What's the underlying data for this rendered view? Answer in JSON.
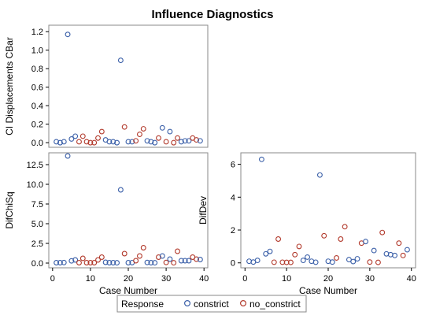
{
  "chart_data": {
    "type": "scatter",
    "title": "Influence Diagnostics",
    "colors": {
      "constrict": "#3a5fa8",
      "no_constrict": "#b23a2c"
    },
    "legend": {
      "title": "Response",
      "entries": [
        "constrict",
        "no_constrict"
      ],
      "placement": "bottom"
    },
    "cases": [
      1,
      2,
      3,
      4,
      5,
      6,
      7,
      8,
      9,
      10,
      11,
      12,
      13,
      14,
      15,
      16,
      17,
      18,
      19,
      20,
      21,
      22,
      23,
      24,
      25,
      26,
      27,
      28,
      29,
      30,
      31,
      32,
      33,
      34,
      35,
      36,
      37,
      38,
      39
    ],
    "response": [
      "constrict",
      "constrict",
      "constrict",
      "constrict",
      "constrict",
      "constrict",
      "no_constrict",
      "no_constrict",
      "no_constrict",
      "no_constrict",
      "no_constrict",
      "no_constrict",
      "no_constrict",
      "constrict",
      "constrict",
      "constrict",
      "constrict",
      "constrict",
      "no_constrict",
      "constrict",
      "constrict",
      "no_constrict",
      "no_constrict",
      "no_constrict",
      "constrict",
      "constrict",
      "constrict",
      "no_constrict",
      "constrict",
      "no_constrict",
      "constrict",
      "no_constrict",
      "no_constrict",
      "constrict",
      "constrict",
      "constrict",
      "no_constrict",
      "no_constrict",
      "constrict"
    ],
    "panels": [
      {
        "id": "cbar",
        "ylabel": "CI Displacements CBar",
        "ylim": [
          -0.05,
          1.27
        ],
        "yticks": [
          "0.0",
          "0.2",
          "0.4",
          "0.6",
          "0.8",
          "1.0",
          "1.2"
        ],
        "show_x_axis": false,
        "values": [
          0.01,
          0.0,
          0.01,
          1.17,
          0.04,
          0.07,
          0.01,
          0.07,
          0.01,
          0.0,
          0.0,
          0.05,
          0.12,
          0.03,
          0.01,
          0.01,
          0.0,
          0.89,
          0.17,
          0.01,
          0.01,
          0.02,
          0.09,
          0.15,
          0.02,
          0.01,
          0.0,
          0.05,
          0.16,
          0.01,
          0.12,
          0.0,
          0.05,
          0.01,
          0.02,
          0.02,
          0.05,
          0.03,
          0.02
        ]
      },
      {
        "id": "difchisq",
        "ylabel": "DifChiSq",
        "ylim": [
          -0.6,
          14.0
        ],
        "yticks": [
          "0.0",
          "2.5",
          "5.0",
          "7.5",
          "10.0",
          "12.5"
        ],
        "show_x_axis": true,
        "xlabel": "Case Number",
        "xlim": [
          -1,
          41
        ],
        "xticks": [
          "0",
          "10",
          "20",
          "30",
          "40"
        ],
        "values": [
          0.05,
          0.05,
          0.07,
          13.6,
          0.28,
          0.4,
          0.05,
          0.6,
          0.05,
          0.05,
          0.05,
          0.4,
          0.75,
          0.1,
          0.05,
          0.05,
          0.04,
          9.3,
          1.2,
          0.05,
          0.06,
          0.3,
          0.9,
          1.95,
          0.08,
          0.05,
          0.04,
          0.75,
          0.9,
          0.08,
          0.5,
          0.04,
          1.5,
          0.3,
          0.3,
          0.3,
          0.75,
          0.5,
          0.45
        ]
      },
      {
        "id": "difdev",
        "ylabel": "DifDev",
        "ylim": [
          -0.3,
          6.7
        ],
        "yticks": [
          "0",
          "2",
          "4",
          "6"
        ],
        "show_x_axis": true,
        "xlabel": "Case Number",
        "xlim": [
          -1,
          41
        ],
        "xticks": [
          "0",
          "10",
          "20",
          "30",
          "40"
        ],
        "values": [
          0.1,
          0.05,
          0.15,
          6.3,
          0.55,
          0.7,
          0.04,
          1.45,
          0.04,
          0.03,
          0.03,
          0.5,
          1.0,
          0.15,
          0.35,
          0.1,
          0.04,
          5.35,
          1.65,
          0.1,
          0.05,
          0.3,
          1.45,
          2.2,
          0.2,
          0.08,
          0.25,
          1.2,
          1.3,
          0.05,
          0.75,
          0.03,
          1.85,
          0.55,
          0.5,
          0.45,
          1.2,
          0.45,
          0.8
        ]
      }
    ]
  }
}
